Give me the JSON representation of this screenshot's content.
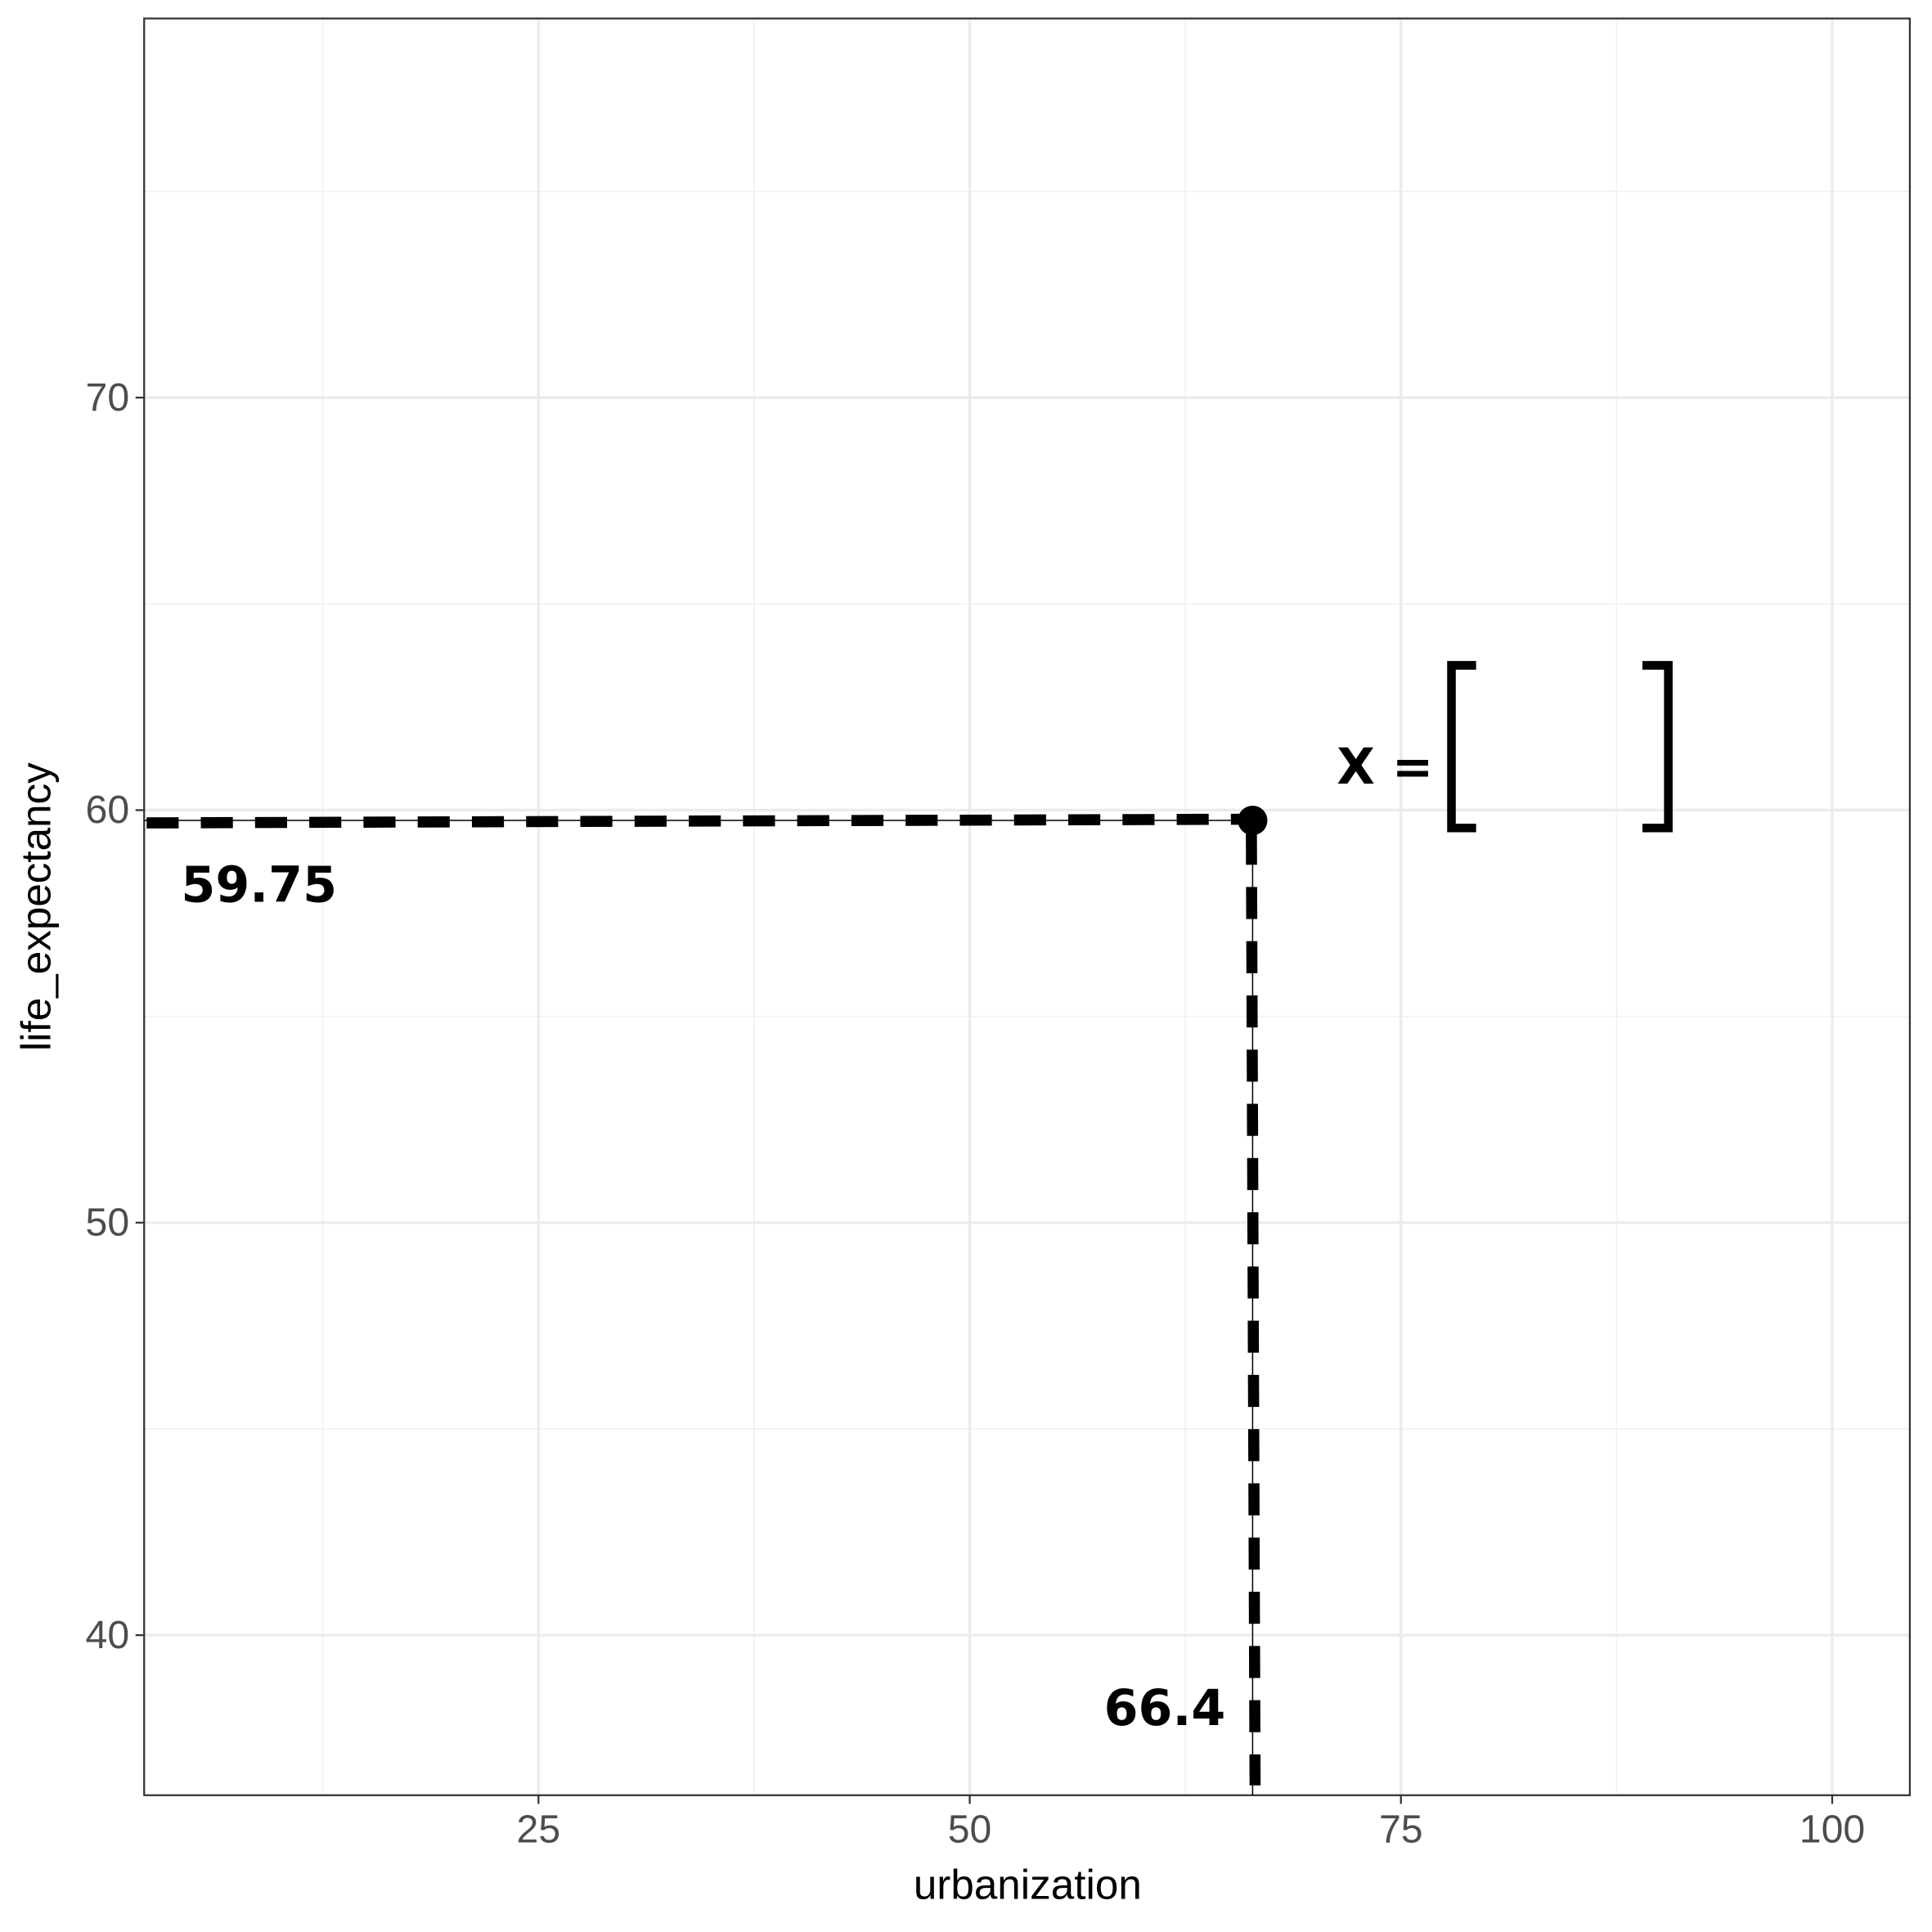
{
  "chart_data": {
    "type": "scatter",
    "x_label": "urbanization",
    "y_label": "life_expectancy",
    "x": [
      66.4
    ],
    "values": [
      59.75
    ],
    "color": "#000000",
    "xlim": [
      2.14,
      104.5
    ],
    "ylim": [
      36.12,
      79.19
    ],
    "xticks": [
      25,
      50,
      75,
      100
    ],
    "yticks": [
      40,
      50,
      60,
      70
    ],
    "grid": true,
    "guide_lines": "dashed",
    "annotations": [
      {
        "text": "X ="
      }
    ]
  }
}
